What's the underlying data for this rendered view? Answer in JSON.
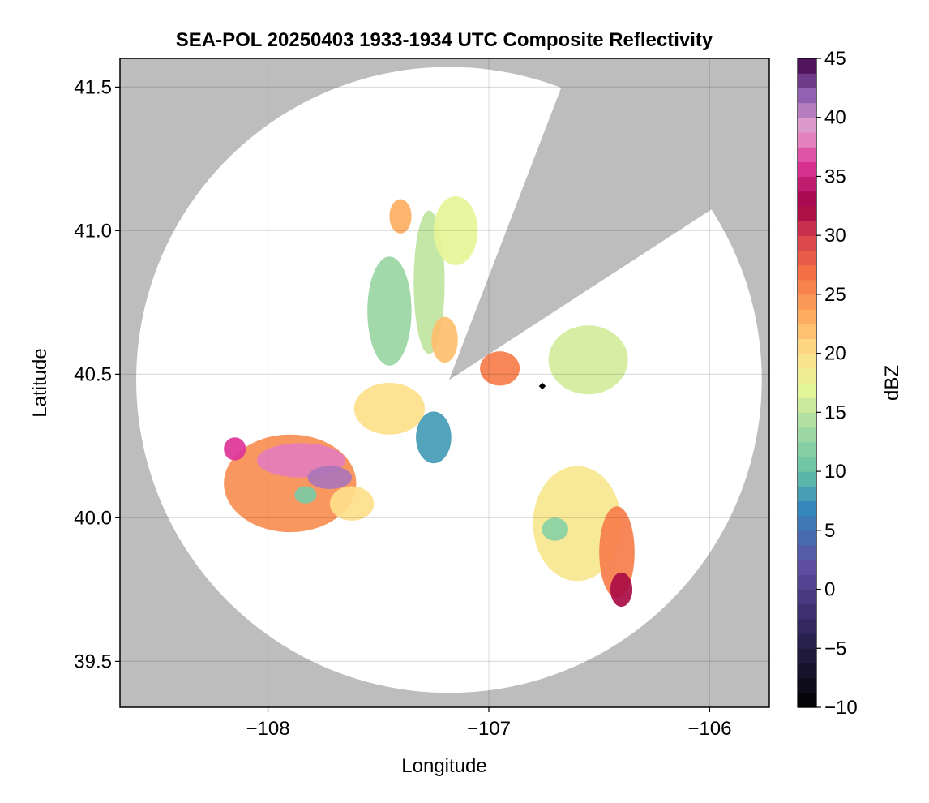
{
  "chart_data": {
    "type": "heatmap",
    "title": "SEA-POL 20250403 1933-1934 UTC Composite Reflectivity",
    "xlabel": "Longitude",
    "ylabel": "Latitude",
    "xlim": [
      -108.67,
      -105.73
    ],
    "ylim": [
      39.34,
      41.6
    ],
    "x_ticks": [
      -108,
      -107,
      -106
    ],
    "x_tick_labels": [
      "−108",
      "−107",
      "−106"
    ],
    "y_ticks": [
      39.5,
      40.0,
      40.5,
      41.0,
      41.5
    ],
    "y_tick_labels": [
      "39.5",
      "40.0",
      "40.5",
      "41.0",
      "41.5"
    ],
    "grid": true,
    "radar_center": {
      "lon": -107.18,
      "lat": 40.48
    },
    "range_radius_deg_lat": 1.09,
    "blocked_sector_bearings_deg": [
      [
        21,
        57
      ]
    ],
    "colorbar": {
      "label": "dBZ",
      "min": -10,
      "max": 45,
      "step": 1.25,
      "ticks": [
        -10,
        -5,
        0,
        5,
        10,
        15,
        20,
        25,
        30,
        35,
        40,
        45
      ],
      "tick_labels": [
        "−10",
        "−5",
        "0",
        "5",
        "10",
        "15",
        "20",
        "25",
        "30",
        "35",
        "40",
        "45"
      ],
      "colormap_stops": [
        {
          "v": -10,
          "c": "#000000"
        },
        {
          "v": -2,
          "c": "#3b2f6e"
        },
        {
          "v": 2,
          "c": "#5e4fa2"
        },
        {
          "v": 7,
          "c": "#3288bd"
        },
        {
          "v": 10,
          "c": "#66c2a5"
        },
        {
          "v": 14,
          "c": "#abdda4"
        },
        {
          "v": 17,
          "c": "#e6f598"
        },
        {
          "v": 20,
          "c": "#fee08b"
        },
        {
          "v": 23,
          "c": "#fdae61"
        },
        {
          "v": 27,
          "c": "#f46d43"
        },
        {
          "v": 30,
          "c": "#d53e4f"
        },
        {
          "v": 32.5,
          "c": "#9e0142"
        },
        {
          "v": 36,
          "c": "#dd3497"
        },
        {
          "v": 39,
          "c": "#e7a1cf"
        },
        {
          "v": 42,
          "c": "#8c5fb0"
        },
        {
          "v": 45,
          "c": "#3f0046"
        }
      ]
    },
    "echo_regions": [
      {
        "name": "southwest-storm",
        "lon": -107.9,
        "lat": 40.12,
        "rlon": 0.3,
        "rlat": 0.17,
        "dbz": 25
      },
      {
        "name": "southwest-core",
        "lon": -107.85,
        "lat": 40.2,
        "rlon": 0.2,
        "rlat": 0.06,
        "dbz": 38
      },
      {
        "name": "southwest-core-2",
        "lon": -107.72,
        "lat": 40.14,
        "rlon": 0.1,
        "rlat": 0.04,
        "dbz": 41
      },
      {
        "name": "southwest-west-cell",
        "lon": -108.15,
        "lat": 40.24,
        "rlon": 0.05,
        "rlat": 0.04,
        "dbz": 36
      },
      {
        "name": "southwest-flank",
        "lon": -107.62,
        "lat": 40.05,
        "rlon": 0.1,
        "rlat": 0.06,
        "dbz": 20
      },
      {
        "name": "south-green",
        "lon": -107.83,
        "lat": 40.08,
        "rlon": 0.05,
        "rlat": 0.03,
        "dbz": 11
      },
      {
        "name": "central-west",
        "lon": -107.45,
        "lat": 40.38,
        "rlon": 0.16,
        "rlat": 0.09,
        "dbz": 20
      },
      {
        "name": "central-blue",
        "lon": -107.25,
        "lat": 40.28,
        "rlon": 0.08,
        "rlat": 0.09,
        "dbz": 8
      },
      {
        "name": "north-band",
        "lon": -107.45,
        "lat": 40.72,
        "rlon": 0.1,
        "rlat": 0.19,
        "dbz": 13
      },
      {
        "name": "north-band-2",
        "lon": -107.27,
        "lat": 40.82,
        "rlon": 0.07,
        "rlat": 0.25,
        "dbz": 15
      },
      {
        "name": "north-far",
        "lon": -107.15,
        "lat": 41.0,
        "rlon": 0.1,
        "rlat": 0.12,
        "dbz": 17
      },
      {
        "name": "north-cell",
        "lon": -107.4,
        "lat": 41.05,
        "rlon": 0.05,
        "rlat": 0.06,
        "dbz": 23
      },
      {
        "name": "near-radar-north",
        "lon": -107.2,
        "lat": 40.62,
        "rlon": 0.06,
        "rlat": 0.08,
        "dbz": 22
      },
      {
        "name": "east-near",
        "lon": -106.95,
        "lat": 40.52,
        "rlon": 0.09,
        "rlat": 0.06,
        "dbz": 26
      },
      {
        "name": "east-scatter",
        "lon": -106.55,
        "lat": 40.55,
        "rlon": 0.18,
        "rlat": 0.12,
        "dbz": 16
      },
      {
        "name": "southeast-storm",
        "lon": -106.6,
        "lat": 39.98,
        "rlon": 0.2,
        "rlat": 0.2,
        "dbz": 19
      },
      {
        "name": "southeast-line",
        "lon": -106.42,
        "lat": 39.88,
        "rlon": 0.08,
        "rlat": 0.16,
        "dbz": 26
      },
      {
        "name": "southeast-cores",
        "lon": -106.4,
        "lat": 39.75,
        "rlon": 0.05,
        "rlat": 0.06,
        "dbz": 32
      },
      {
        "name": "southeast-green",
        "lon": -106.7,
        "lat": 39.96,
        "rlon": 0.06,
        "rlat": 0.04,
        "dbz": 12
      }
    ]
  }
}
